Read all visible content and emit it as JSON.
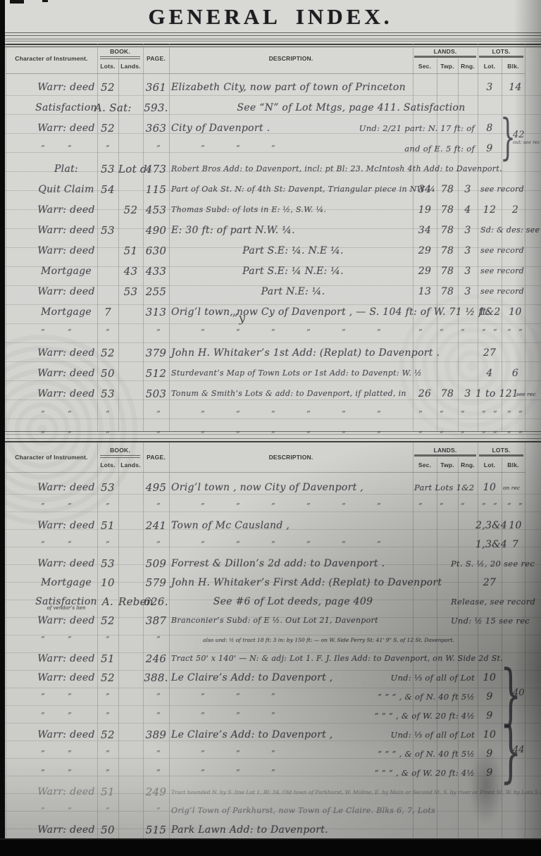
{
  "page": {
    "title": "GENERAL INDEX.",
    "stray_mark": "”y"
  },
  "colors": {
    "paper": "#d4d4d1",
    "ink": "#33343b",
    "rule": "#99a093"
  },
  "header_labels": {
    "instrument": "Character of Instrument.",
    "book": "BOOK.",
    "lots": "Lots.",
    "lands": "Lands.",
    "page": "PAGE.",
    "description": "DESCRIPTION.",
    "lands_group": "LANDS.",
    "lots_group": "LOTS.",
    "sec": "Sec.",
    "twp": "Twp.",
    "rng": "Rng.",
    "lot": "Lot.",
    "blk": "Blk."
  },
  "ditto_glyph": "”",
  "tables": [
    {
      "name": "upper-index-table",
      "rows": [
        {
          "inst": "Warr: deed",
          "lots": "52",
          "page": "361",
          "desc": "Elizabeth City, now part of town of Princeton",
          "lot": "3",
          "blk": "14"
        },
        {
          "inst": "Satisfaction",
          "lots": "A. Sat:",
          "page": "593.",
          "desc": "See “N” of Lot Mtgs, page 411.      Satisfaction",
          "desc_align": "center",
          "wide": true
        },
        {
          "inst": "Warr: deed",
          "lots": "52",
          "page": "363",
          "desc": "City of Davenport .",
          "desc_right": "Und: 2/21 part: N. 17 ft: of",
          "lot": "8",
          "brace": {
            "rows": 2,
            "label": "42",
            "sub": "out: see rec"
          }
        },
        {
          "marks": "ld",
          "desc_right": "and of E. 5 ft: of",
          "lot": "9"
        },
        {
          "inst": "Plat:",
          "lots": "53",
          "lands": "Lot d:",
          "page": "473",
          "desc": "Robert Bros Add: to Davenport, incl: pt Bl: 23. McIntosh 4th Add: to Davenport.",
          "wide": true,
          "size": "small"
        },
        {
          "inst": "Quit Claim",
          "lots": "54",
          "page": "115",
          "desc": "Part of Oak St. N: of 4th St: Davenpt, Triangular piece in NW ¼",
          "size": "small",
          "sec": "34",
          "twp": "78",
          "rng": "3",
          "note": "see record"
        },
        {
          "inst": "Warr: deed",
          "lands": "52",
          "page": "453",
          "desc": "Thomas Subd: of lots in E: ½, S.W. ¼.",
          "size": "small",
          "sec": "19",
          "twp": "78",
          "rng": "4",
          "lot": "12",
          "blk": "2"
        },
        {
          "inst": "Warr: deed",
          "lots": "53",
          "page": "490",
          "desc": "E: 30 ft: of part N.W. ¼.",
          "sec": "34",
          "twp": "78",
          "rng": "3",
          "note": "Sd: & des: see rec"
        },
        {
          "inst": "Warr: deed",
          "lands": "51",
          "page": "630",
          "desc": "Part S.E: ¼.   N.E ¼.",
          "desc_align": "center",
          "sec": "29",
          "twp": "78",
          "rng": "3",
          "note": "see record"
        },
        {
          "inst": "Mortgage",
          "lands": "43",
          "page": "433",
          "desc": "Part S.E: ¼ N.E: ¼.",
          "desc_align": "center",
          "sec": "29",
          "twp": "78",
          "rng": "3",
          "note": "see record"
        },
        {
          "inst": "Warr: deed",
          "lands": "53",
          "page": "255",
          "desc": "Part N.E: ¼.",
          "desc_align": "center",
          "sec": "13",
          "twp": "78",
          "rng": "3",
          "note": "see record"
        },
        {
          "inst": "Mortgage",
          "lots": "7",
          "page": "313",
          "desc": "Orig’l town, now Cy of Davenport , — S. 104 ft: of W. 71 ½ ft:",
          "wide": true,
          "lot": "1&2",
          "blk": "10"
        },
        {
          "marks": "lDr"
        },
        {
          "inst": "Warr: deed",
          "lots": "52",
          "page": "379",
          "desc": "John H. Whitaker’s 1st Add: (Replat) to Davenport .",
          "lot": "27"
        },
        {
          "inst": "Warr: deed",
          "lots": "50",
          "page": "512",
          "desc": "Sturdevant’s Map of Town Lots or 1st Add: to Davenpt: W. ½",
          "wide": true,
          "size": "small",
          "lot": "4",
          "blk": "6"
        },
        {
          "inst": "Warr: deed",
          "lots": "53",
          "page": "503",
          "desc": "Tonum & Smith’s Lots & add: to Davenport, if platted, in",
          "size": "small",
          "sec": "26",
          "twp": "78",
          "rng": "3",
          "lot": "1 to 12",
          "blk": "1",
          "note": "see rec"
        },
        {
          "marks": "lDr"
        },
        {
          "marks": "lDr"
        }
      ]
    },
    {
      "name": "lower-index-table",
      "rows": [
        {
          "inst": "Warr: deed",
          "lots": "53",
          "page": "495",
          "desc": "Orig’l town , now City of Davenport ,",
          "lands_span": "Part Lots 1&2",
          "lot": "10",
          "note": "on rec"
        },
        {
          "marks": "lDr"
        },
        {
          "inst": "Warr: deed",
          "lots": "51",
          "page": "241",
          "desc": "Town of Mc Causland ,",
          "lot": "2,3&4",
          "blk": "10"
        },
        {
          "marks": "lD",
          "lot": "1,3&4",
          "blk": "7"
        },
        {
          "inst": "Warr: deed",
          "lots": "53",
          "page": "509",
          "desc": "Forrest & Dillon’s 2d add: to Davenport .",
          "right_text": "Pt. S. ½,  20  see rec"
        },
        {
          "inst": "Mortgage",
          "lots": "10",
          "page": "579",
          "desc": "John H. Whitaker’s First Add: (Replat) to Davenport",
          "lot": "27"
        },
        {
          "inst": "Satisfaction",
          "inst_sub": "of vendor’s lien",
          "lots": "A.",
          "lands": "Reben",
          "page": "626.",
          "desc": "See #6 of Lot deeds, page 409",
          "desc_align": "center",
          "right_text": "Release,   see record"
        },
        {
          "inst": "Warr: deed",
          "lots": "52",
          "page": "387",
          "desc": "Branconier’s Subd: of E ½. Out Lot 21,    Davenport",
          "size": "small",
          "right_text": "Und: ½  15  see rec"
        },
        {
          "marks": "l",
          "desc": "also und: ½ of tract 18 ft: 3 in: by 150 ft: — on W. Side Perry St: 41' 9\" S. of 12 St.   Davenport.",
          "size": "tiny",
          "wide": true,
          "desc_indent": 45
        },
        {
          "inst": "Warr: deed",
          "lots": "51",
          "page": "246",
          "desc": "Tract 50' x 140' — N: & adj: Lot 1.  F. J. Iles Add: to Davenport, on W. Side 2d St.",
          "size": "small",
          "wide": true
        },
        {
          "inst": "Warr: deed",
          "lots": "52",
          "page": "388.",
          "desc": "Le Claire’s Add: to Davenport ,",
          "desc_right": "Und: ⅓ of all of Lot",
          "lot": "10",
          "brace": {
            "rows": 3,
            "label": "40"
          }
        },
        {
          "marks": "ld",
          "desc_right": "”   ”   ”  ,   & of N. 40 ft 5½",
          "lot": "9"
        },
        {
          "marks": "ld",
          "desc_right": "”   ”   ”  ,   & of W. 20 ft: 4½",
          "lot": "9"
        },
        {
          "inst": "Warr: deed",
          "lots": "52",
          "page": "389",
          "desc": "Le Claire’s Add: to Davenport ,",
          "desc_right": "Und: ⅓ of all of Lot",
          "lot": "10",
          "brace": {
            "rows": 3,
            "label": "44"
          }
        },
        {
          "marks": "ld",
          "desc_right": "”   ”   ”  ,   & of N. 40 ft 5½",
          "lot": "9"
        },
        {
          "marks": "ld",
          "desc_right": "”   ”   ”  ,   & of W. 20 ft: 4½",
          "lot": "9"
        },
        {
          "inst": "Warr: deed",
          "lots": "51",
          "page": "249",
          "desc": "Tract bounded N. by S. line Lot 1, Bl: 34, Old town of Parkhurst, W. Moline, E. by Main or Second St. S. by river or Front St. W. by Lots 5 & 6, Bl: 34.  see rec",
          "size": "tiny",
          "wide": true,
          "fade": 0.5
        },
        {
          "marks": "l",
          "desc": "Orig’l Town of Parkhurst, now Town of Le Claire.    Blks 6, 7, Lots",
          "size": "small",
          "desc_align": "center",
          "fade": 0.6
        },
        {
          "inst": "Warr: deed",
          "lots": "50",
          "page": "515",
          "desc": "Park Lawn Add: to Davenport."
        }
      ]
    }
  ]
}
